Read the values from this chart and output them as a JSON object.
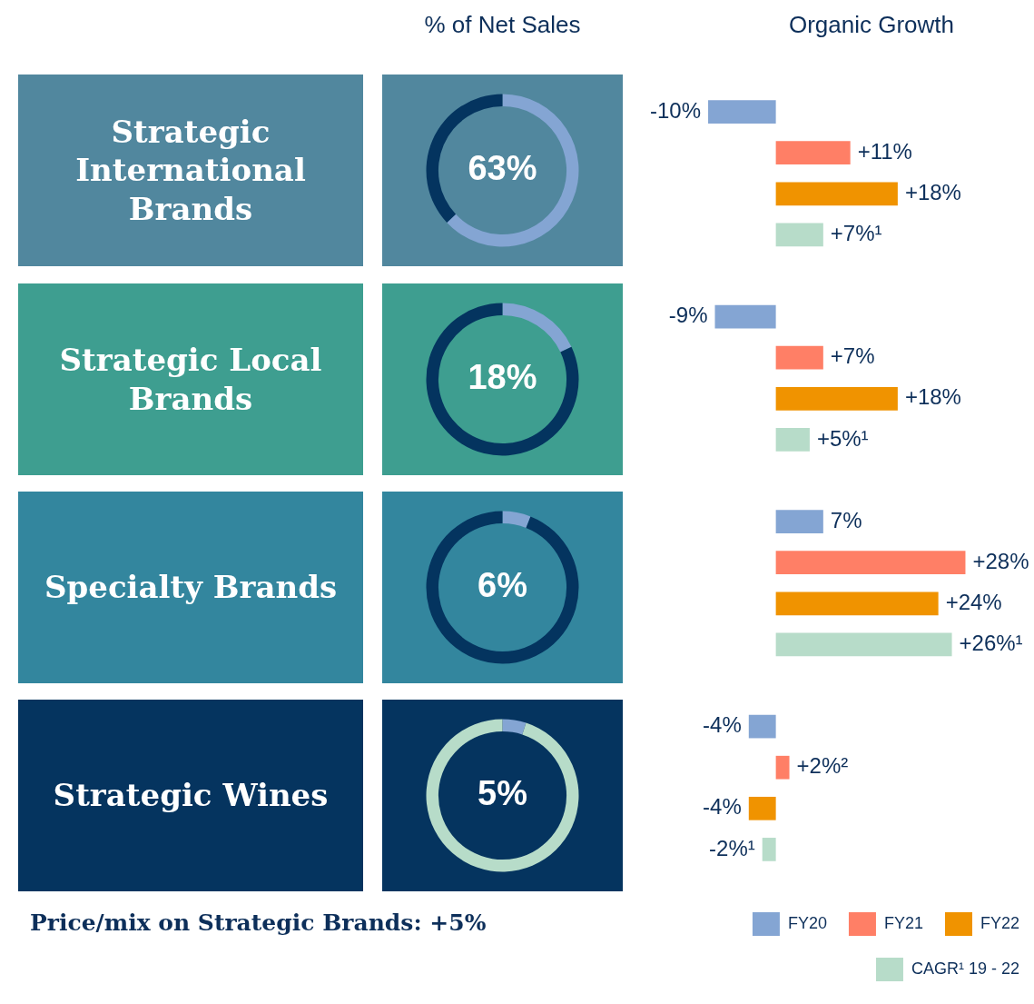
{
  "chart_data": [
    {
      "type": "donut",
      "title": "% of Net Sales",
      "categories": [
        null,
        null
      ],
      "values": [
        63,
        37
      ],
      "colors": [
        "#84a5d3",
        "#04345f"
      ],
      "value_labels": [
        "63%",
        null
      ]
    },
    {
      "type": "donut",
      "categories": [
        null,
        null
      ],
      "values": [
        18,
        82
      ],
      "colors": [
        "#84a5d3",
        "#04345f"
      ],
      "value_labels": [
        "18%",
        null
      ]
    },
    {
      "type": "donut",
      "categories": [
        null,
        null
      ],
      "values": [
        6,
        94
      ],
      "colors": [
        "#84a5d3",
        "#04345f"
      ],
      "value_labels": [
        "6%",
        null
      ]
    },
    {
      "type": "donut",
      "categories": [
        null,
        null
      ],
      "values": [
        5,
        95
      ],
      "colors": [
        "#84a5d3",
        "#b7dcc9"
      ],
      "value_labels": [
        "5%",
        null
      ]
    },
    {
      "type": "bar",
      "title": "Organic Growth",
      "orientation": "horizontal",
      "categories": [
        "Strategic International Brands",
        "Strategic Local Brands",
        "Specialty Brands",
        "Strategic Wines"
      ],
      "series": [
        {
          "name": "FY20",
          "color": "#84a5d3",
          "values": [
            -10,
            -9,
            7,
            -4
          ],
          "value_labels": [
            "-10%",
            "-9%",
            "7%",
            "-4%"
          ]
        },
        {
          "name": "FY21",
          "color": "#ff7f66",
          "values": [
            11,
            7,
            28,
            2
          ],
          "value_labels": [
            "+11%",
            "+7%",
            "+28%",
            "+2%²"
          ]
        },
        {
          "name": "FY22",
          "color": "#f09300",
          "values": [
            18,
            18,
            24,
            -4
          ],
          "value_labels": [
            "+18%",
            "+18%",
            "+24%",
            "-4%"
          ]
        },
        {
          "name": "CAGR¹ 19 - 22",
          "color": "#b7dcc9",
          "values": [
            7,
            5,
            26,
            -2
          ],
          "value_labels": [
            "+7%¹",
            "+5%¹",
            "+26%¹",
            "-2%¹"
          ]
        }
      ],
      "legend": "bottom right",
      "annotations": [
        "Price/mix on Strategic Brands: +5%"
      ]
    }
  ]
}
